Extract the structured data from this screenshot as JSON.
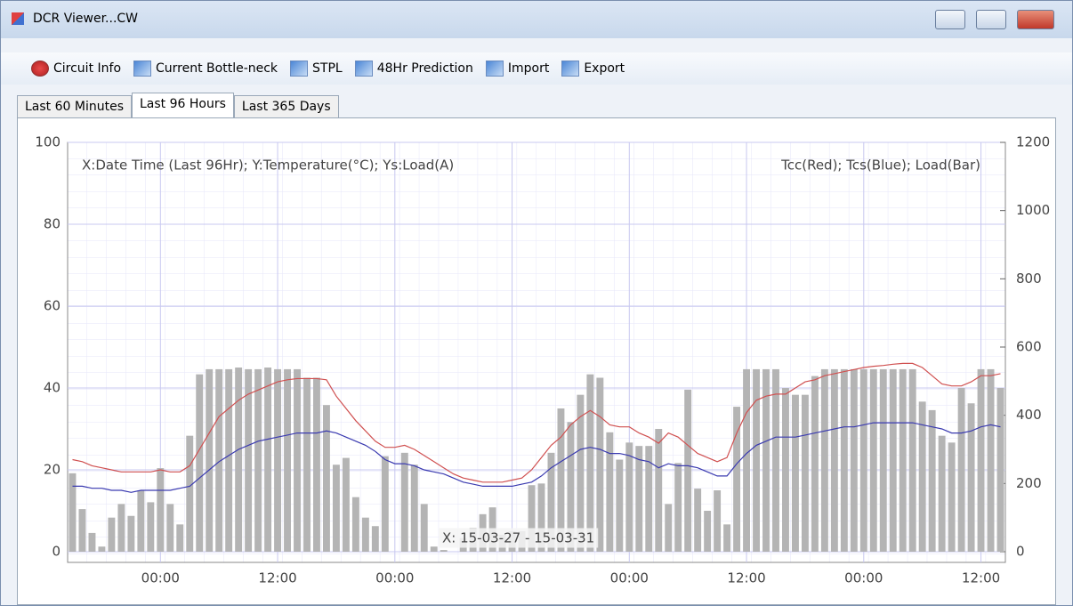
{
  "window": {
    "title": "DCR Viewer...CW"
  },
  "toolbar": [
    "Circuit Info",
    "Current Bottle-neck",
    "STPL",
    "48Hr Prediction",
    "Import",
    "Export"
  ],
  "tabs": [
    "Last 60 Minutes",
    "Last 96 Hours",
    "Last 365 Days"
  ],
  "active_tab": 1,
  "chart_data": {
    "type": "bar",
    "annotations": [
      "X:Date Time (Last 96Hr); Y:Temperature(°C); Ys:Load(A)",
      "Tcc(Red); Tcs(Blue); Load(Bar)",
      "X: 15-03-27 - 15-03-31"
    ],
    "categories": [
      null,
      null,
      null,
      null,
      null,
      null,
      null,
      null,
      null,
      "00:00",
      null,
      null,
      null,
      null,
      null,
      null,
      null,
      null,
      null,
      null,
      null,
      "12:00",
      null,
      null,
      null,
      null,
      null,
      null,
      null,
      null,
      null,
      null,
      null,
      "00:00",
      null,
      null,
      null,
      null,
      null,
      null,
      null,
      null,
      null,
      null,
      null,
      "12:00",
      null,
      null,
      null,
      null,
      null,
      null,
      null,
      null,
      null,
      null,
      null,
      "00:00",
      null,
      null,
      null,
      null,
      null,
      null,
      null,
      null,
      null,
      null,
      null,
      "12:00",
      null,
      null,
      null,
      null,
      null,
      null,
      null,
      null,
      null,
      null,
      null,
      "00:00",
      null,
      null,
      null,
      null,
      null,
      null,
      null,
      null,
      null,
      null,
      null,
      "12:00",
      null,
      null
    ],
    "series": [
      {
        "type": "bar",
        "axis": "y2",
        "color": "#b4b4b4",
        "values": [
          230,
          125,
          55,
          15,
          100,
          140,
          105,
          180,
          145,
          245,
          140,
          80,
          340,
          520,
          535,
          535,
          535,
          540,
          535,
          535,
          540,
          535,
          535,
          535,
          510,
          510,
          430,
          255,
          275,
          160,
          100,
          75,
          280,
          0,
          290,
          255,
          140,
          15,
          5,
          0,
          40,
          70,
          110,
          130,
          50,
          60,
          60,
          195,
          200,
          290,
          420,
          380,
          460,
          520,
          510,
          350,
          270,
          320,
          310,
          310,
          360,
          140,
          260,
          475,
          185,
          120,
          180,
          80,
          425,
          535,
          535,
          535,
          535,
          480,
          460,
          460,
          515,
          535,
          535,
          535,
          535,
          535,
          535,
          535,
          535,
          535,
          535,
          440,
          415,
          340,
          320,
          480,
          435,
          535,
          535,
          480
        ]
      },
      {
        "type": "line",
        "color": "#d05050",
        "values": [
          22.5,
          22,
          21,
          20.5,
          20,
          19.5,
          19.5,
          19.5,
          19.5,
          20,
          19.5,
          19.5,
          21,
          25,
          29,
          33,
          35,
          37,
          38.5,
          39.5,
          40.5,
          41.5,
          42,
          42.3,
          42.3,
          42.3,
          42,
          38,
          35,
          32,
          29.5,
          27,
          25.5,
          25.5,
          26,
          25,
          23.5,
          22,
          20.5,
          19,
          18,
          17.5,
          17,
          17,
          17,
          17.5,
          18,
          20,
          23,
          26,
          28,
          31,
          33,
          34.5,
          33,
          31,
          30.5,
          30.5,
          29,
          28,
          26.5,
          29,
          28,
          26,
          24,
          23,
          22,
          23,
          29,
          34,
          37,
          38,
          38.5,
          38.5,
          40,
          41.5,
          42,
          43,
          43.5,
          44,
          44.5,
          45,
          45.3,
          45.5,
          45.8,
          46,
          46,
          45,
          43,
          41,
          40.5,
          40.5,
          41.5,
          43,
          43,
          43.5
        ]
      },
      {
        "type": "line",
        "color": "#3a3ab0",
        "values": [
          16,
          16,
          15.5,
          15.5,
          15,
          15,
          14.5,
          15,
          15,
          15,
          15,
          15.5,
          16,
          18,
          20,
          22,
          23.5,
          25,
          26,
          27,
          27.5,
          28,
          28.5,
          29,
          29,
          29,
          29.5,
          29,
          28,
          27,
          26,
          24.5,
          22.5,
          21.5,
          21.5,
          21,
          20,
          19.5,
          19,
          18,
          17,
          16.5,
          16,
          16,
          16,
          16,
          16.5,
          17,
          18.5,
          20.5,
          22,
          23.5,
          25,
          25.5,
          25,
          24,
          24,
          23.5,
          22.5,
          22,
          20.5,
          21.5,
          21,
          21,
          20.5,
          19.5,
          18.5,
          18.5,
          21.5,
          24,
          26,
          27,
          28,
          28,
          28,
          28.5,
          29,
          29.5,
          30,
          30.5,
          30.5,
          31,
          31.5,
          31.5,
          31.5,
          31.5,
          31.5,
          31,
          30.5,
          30,
          29,
          29,
          29.5,
          30.5,
          31,
          30.5
        ]
      }
    ],
    "ylim": [
      0,
      100
    ],
    "yticks": [
      0,
      20,
      40,
      60,
      80,
      100
    ],
    "y2lim": [
      0,
      1200
    ],
    "y2ticks": [
      0,
      200,
      400,
      600,
      800,
      1000,
      1200
    ],
    "grid": true
  }
}
